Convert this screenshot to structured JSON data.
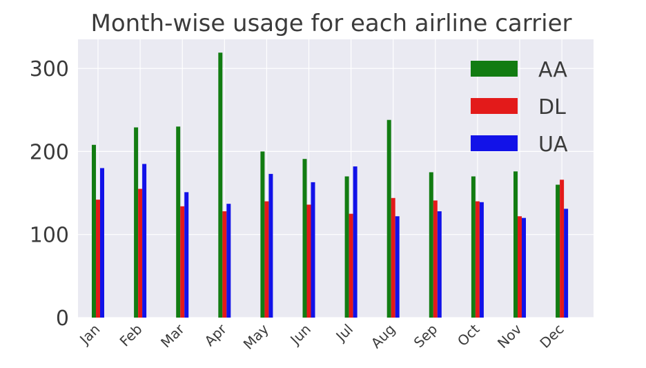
{
  "chart_data": {
    "type": "bar",
    "title": "Month-wise usage for each airline carrier",
    "xlabel": "",
    "ylabel": "",
    "categories": [
      "Jan",
      "Feb",
      "Mar",
      "Apr",
      "May",
      "Jun",
      "Jul",
      "Aug",
      "Sep",
      "Oct",
      "Nov",
      "Dec"
    ],
    "series": [
      {
        "name": "AA",
        "color": "#127c12",
        "values": [
          208,
          229,
          230,
          319,
          200,
          191,
          170,
          238,
          175,
          170,
          176,
          160
        ]
      },
      {
        "name": "DL",
        "color": "#e31a1a",
        "values": [
          142,
          155,
          134,
          128,
          140,
          136,
          125,
          144,
          141,
          140,
          122,
          166
        ]
      },
      {
        "name": "UA",
        "color": "#1212e8",
        "values": [
          180,
          185,
          151,
          137,
          173,
          163,
          182,
          122,
          128,
          139,
          120,
          131
        ]
      }
    ],
    "ylim": [
      0,
      335
    ],
    "yticks": [
      0,
      100,
      200,
      300
    ],
    "grid": true,
    "legend_position": "top-right",
    "background": "#eaeaf2"
  }
}
